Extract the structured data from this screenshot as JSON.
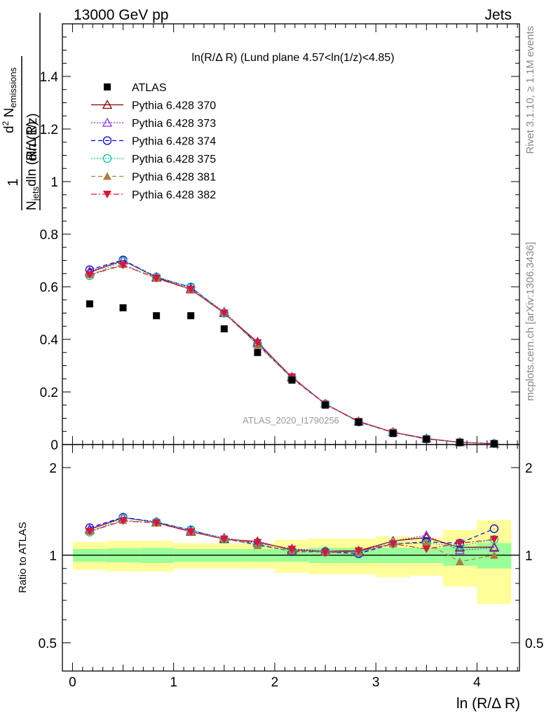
{
  "header": {
    "left": "13000 GeV pp",
    "right": "Jets"
  },
  "side": {
    "rivet": "Rivet 3.1.10, ≥ 1.1M events",
    "mcplots": "mcplots.cern.ch [arXiv:1306.3436]"
  },
  "chart_data": {
    "type": "scatter",
    "title": "ln(R/Δ R) (Lund plane 4.57<ln(1/z)<4.85)",
    "watermark": "ATLAS_2020_I1790256",
    "xlabel": "ln (R/Δ R)",
    "ylabel": "1/N_jets d²N_emissions / dln(R/Δ R) dln(1/z)",
    "ylabel_ratio": "Ratio to ATLAS",
    "xlim": [
      -0.1,
      4.42
    ],
    "ylim": [
      0,
      1.6
    ],
    "ratio_ylim": [
      0.4,
      2.4
    ],
    "ratio_scale": "log",
    "x_ticks": [
      "0",
      "1",
      "2",
      "3",
      "4"
    ],
    "y_ticks": [
      "0",
      "0.2",
      "0.4",
      "0.6",
      "0.8",
      "1",
      "1.2",
      "1.4"
    ],
    "ratio_ticks": [
      "0.5",
      "1",
      "2"
    ],
    "legend_position": "top-left",
    "x": [
      0.17,
      0.5,
      0.83,
      1.17,
      1.5,
      1.83,
      2.17,
      2.5,
      2.83,
      3.17,
      3.5,
      3.83,
      4.17
    ],
    "data": {
      "name": "ATLAS",
      "color": "#000000",
      "values": [
        0.535,
        0.52,
        0.49,
        0.49,
        0.44,
        0.35,
        0.245,
        0.15,
        0.085,
        0.042,
        0.02,
        0.008,
        0.003
      ],
      "band_inner": [
        0.05,
        0.055,
        0.06,
        0.05,
        0.05,
        0.05,
        0.05,
        0.06,
        0.06,
        0.06,
        0.06,
        0.08,
        0.1
      ],
      "band_outer": [
        0.11,
        0.12,
        0.12,
        0.1,
        0.1,
        0.1,
        0.13,
        0.14,
        0.14,
        0.16,
        0.15,
        0.22,
        0.32
      ]
    },
    "series": [
      {
        "name": "Pythia 6.428 370",
        "color": "#800000",
        "dash": "",
        "marker": "triangle-up-open",
        "values": [
          0.655,
          0.7,
          0.635,
          0.59,
          0.5,
          0.39,
          0.255,
          0.155,
          0.088,
          0.047,
          0.023,
          0.0085,
          0.0032
        ],
        "ratio": [
          1.225,
          1.346,
          1.296,
          1.204,
          1.136,
          1.114,
          1.041,
          1.033,
          1.035,
          1.119,
          1.15,
          1.063,
          1.067
        ]
      },
      {
        "name": "Pythia 6.428 373",
        "color": "#8a2be2",
        "dash": "2,2",
        "marker": "triangle-up-open",
        "values": [
          0.66,
          0.7,
          0.638,
          0.595,
          0.505,
          0.385,
          0.258,
          0.155,
          0.087,
          0.047,
          0.023,
          0.0085,
          0.0032
        ],
        "ratio": [
          1.233,
          1.346,
          1.302,
          1.214,
          1.148,
          1.1,
          1.053,
          1.033,
          1.024,
          1.119,
          1.17,
          1.04,
          1.06
        ]
      },
      {
        "name": "Pythia 6.428 374",
        "color": "#0000dd",
        "dash": "6,4",
        "marker": "circle-open",
        "values": [
          0.665,
          0.702,
          0.637,
          0.598,
          0.5,
          0.382,
          0.252,
          0.154,
          0.086,
          0.046,
          0.022,
          0.0088,
          0.0037
        ],
        "ratio": [
          1.243,
          1.35,
          1.3,
          1.22,
          1.136,
          1.091,
          1.029,
          1.027,
          1.012,
          1.095,
          1.11,
          1.1,
          1.233
        ]
      },
      {
        "name": "Pythia 6.428 375",
        "color": "#00cc99",
        "dash": "2,2",
        "marker": "circle-open",
        "values": [
          0.642,
          0.698,
          0.636,
          0.6,
          0.5,
          0.38,
          0.255,
          0.155,
          0.087,
          0.046,
          0.022,
          0.0086,
          0.0034
        ],
        "ratio": [
          1.2,
          1.342,
          1.298,
          1.224,
          1.136,
          1.086,
          1.041,
          1.033,
          1.024,
          1.095,
          1.1,
          1.075,
          1.133
        ]
      },
      {
        "name": "Pythia 6.428 381",
        "color": "#b07a40",
        "dash": "6,4",
        "marker": "triangle-up-filled",
        "values": [
          0.647,
          0.685,
          0.632,
          0.59,
          0.503,
          0.378,
          0.253,
          0.154,
          0.087,
          0.046,
          0.022,
          0.0076,
          0.003
        ],
        "ratio": [
          1.209,
          1.317,
          1.29,
          1.204,
          1.143,
          1.08,
          1.033,
          1.027,
          1.024,
          1.095,
          1.1,
          0.95,
          1.0
        ]
      },
      {
        "name": "Pythia 6.428 382",
        "color": "#dc143c",
        "dash": "8,3,2,3",
        "marker": "triangle-down-filled",
        "values": [
          0.645,
          0.682,
          0.632,
          0.59,
          0.5,
          0.387,
          0.257,
          0.153,
          0.088,
          0.046,
          0.021,
          0.0088,
          0.0034
        ],
        "ratio": [
          1.206,
          1.312,
          1.29,
          1.204,
          1.136,
          1.106,
          1.049,
          1.02,
          1.035,
          1.095,
          1.05,
          1.1,
          1.133
        ]
      }
    ]
  }
}
